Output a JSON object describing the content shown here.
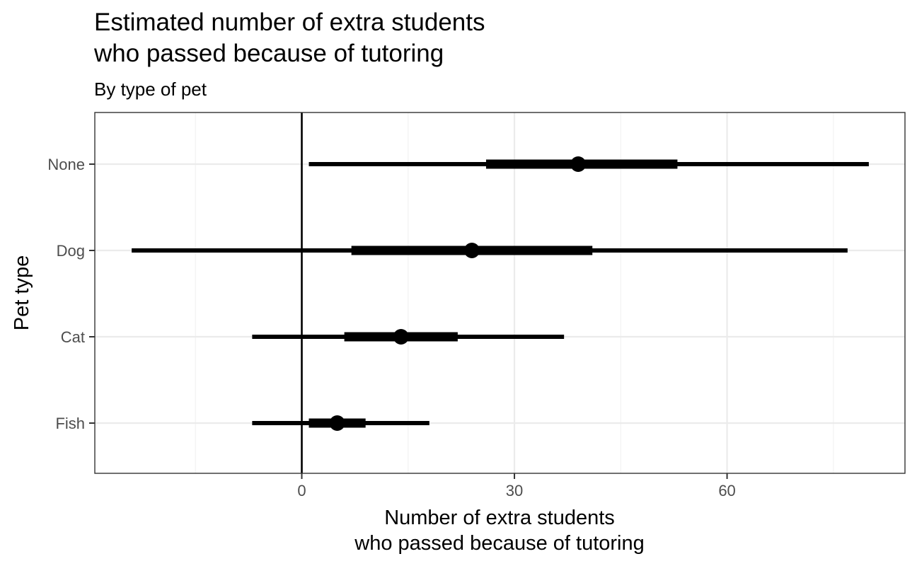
{
  "chart_data": {
    "type": "pointrange",
    "title_lines": [
      "Estimated number of extra students",
      "who passed because of tutoring"
    ],
    "subtitle": "By type of pet",
    "xlabel_lines": [
      "Number of extra students",
      "who passed because of tutoring"
    ],
    "ylabel": "Pet type",
    "xlim": [
      -29.2,
      85.1
    ],
    "x_major_ticks": [
      0,
      30,
      60
    ],
    "x_minor_ticks": [
      -15,
      15,
      45,
      75
    ],
    "x_tick_labels": [
      "0",
      "30",
      "60"
    ],
    "reference_line_x": 0,
    "grid": true,
    "categories": [
      "None",
      "Dog",
      "Cat",
      "Fish"
    ],
    "series": [
      {
        "category": "None",
        "estimate": 39,
        "inner_low": 26,
        "inner_high": 53,
        "outer_low": 1,
        "outer_high": 80
      },
      {
        "category": "Dog",
        "estimate": 24,
        "inner_low": 7,
        "inner_high": 41,
        "outer_low": -24,
        "outer_high": 77
      },
      {
        "category": "Cat",
        "estimate": 14,
        "inner_low": 6,
        "inner_high": 22,
        "outer_low": -7,
        "outer_high": 37
      },
      {
        "category": "Fish",
        "estimate": 5,
        "inner_low": 1,
        "inner_high": 9,
        "outer_low": -7,
        "outer_high": 18
      }
    ],
    "colors": {
      "estimate": "#000000",
      "grid": "#ebebeb",
      "tick_label": "#4d4d4d"
    }
  }
}
